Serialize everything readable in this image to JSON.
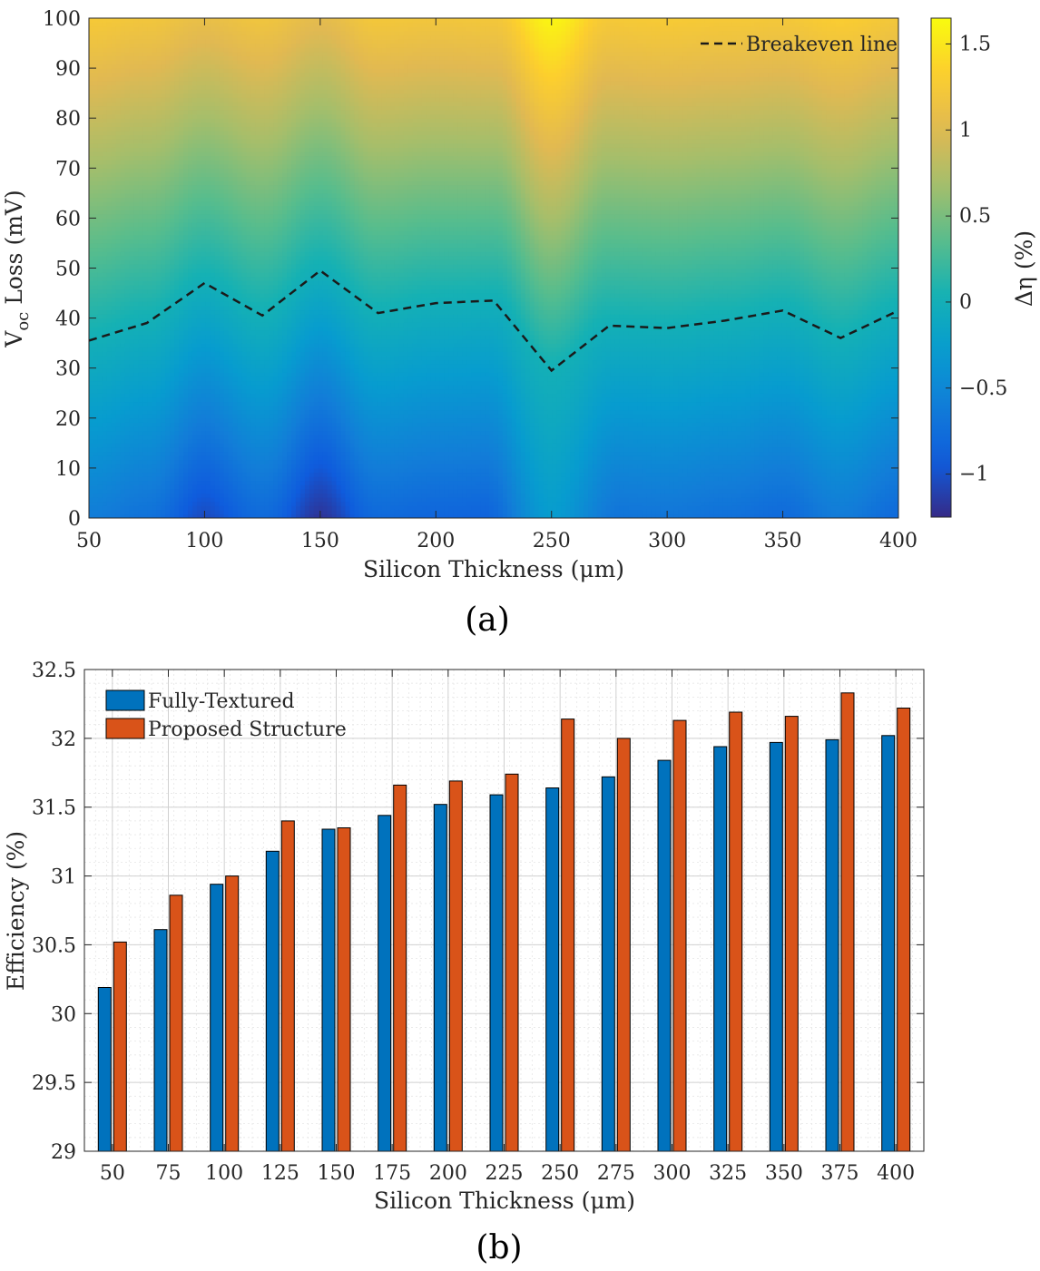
{
  "chart_data": [
    {
      "type": "heatmap",
      "panel_label": "(a)",
      "xlabel": "Silicon Thickness (μm)",
      "ylabel": {
        "main": "V",
        "subscript": "oc",
        "rest": " Loss (mV)"
      },
      "colorbar_label": "Δη (%)",
      "xlim": [
        50,
        400
      ],
      "ylim": [
        0,
        100
      ],
      "clim": [
        -1.25,
        1.65
      ],
      "xticks": [
        50,
        100,
        150,
        200,
        250,
        300,
        350,
        400
      ],
      "yticks": [
        0,
        10,
        20,
        30,
        40,
        50,
        60,
        70,
        80,
        90,
        100
      ],
      "colorbar_ticks": [
        {
          "value": -1,
          "label": "−1"
        },
        {
          "value": -0.5,
          "label": "−0.5"
        },
        {
          "value": 0,
          "label": "0"
        },
        {
          "value": 0.5,
          "label": "0.5"
        },
        {
          "value": 1,
          "label": "1"
        },
        {
          "value": 1.5,
          "label": "1.5"
        }
      ],
      "legend": {
        "label": "Breakeven line",
        "position": "top-right"
      },
      "breakeven_line": {
        "x": [
          50,
          75,
          100,
          125,
          150,
          175,
          200,
          225,
          250,
          275,
          300,
          325,
          350,
          375,
          400
        ],
        "y": [
          35.5,
          39.0,
          47.0,
          40.5,
          49.5,
          41.0,
          43.0,
          43.5,
          29.5,
          38.5,
          38.0,
          39.5,
          41.5,
          36.0,
          41.5
        ]
      },
      "max_gain_at_100mV": {
        "x": [
          50,
          75,
          100,
          125,
          150,
          175,
          200,
          225,
          250,
          275,
          300,
          325,
          350,
          375,
          400
        ],
        "values": [
          1.25,
          1.2,
          1.1,
          1.18,
          1.05,
          1.22,
          1.2,
          1.22,
          1.6,
          1.25,
          1.27,
          1.25,
          1.23,
          1.3,
          1.22
        ]
      }
    },
    {
      "type": "bar",
      "panel_label": "(b)",
      "xlabel": "Silicon Thickness (μm)",
      "ylabel": "Efficiency (%)",
      "ylim": [
        29,
        32.5
      ],
      "yticks": [
        29,
        29.5,
        30,
        30.5,
        31,
        31.5,
        32,
        32.5
      ],
      "categories": [
        "50",
        "75",
        "100",
        "125",
        "150",
        "175",
        "200",
        "225",
        "250",
        "275",
        "300",
        "325",
        "350",
        "375",
        "400"
      ],
      "series": [
        {
          "name": "Fully-Textured",
          "color": "#0072bd",
          "values": [
            30.19,
            30.61,
            30.94,
            31.18,
            31.34,
            31.44,
            31.52,
            31.59,
            31.64,
            31.72,
            31.84,
            31.94,
            31.97,
            31.99,
            32.02
          ]
        },
        {
          "name": "Proposed Structure",
          "color": "#d95319",
          "values": [
            30.52,
            30.86,
            31.0,
            31.4,
            31.35,
            31.66,
            31.69,
            31.74,
            32.14,
            32.0,
            32.13,
            32.19,
            32.16,
            32.33,
            32.22
          ]
        }
      ],
      "legend_position": "top-left",
      "grid": true
    }
  ]
}
